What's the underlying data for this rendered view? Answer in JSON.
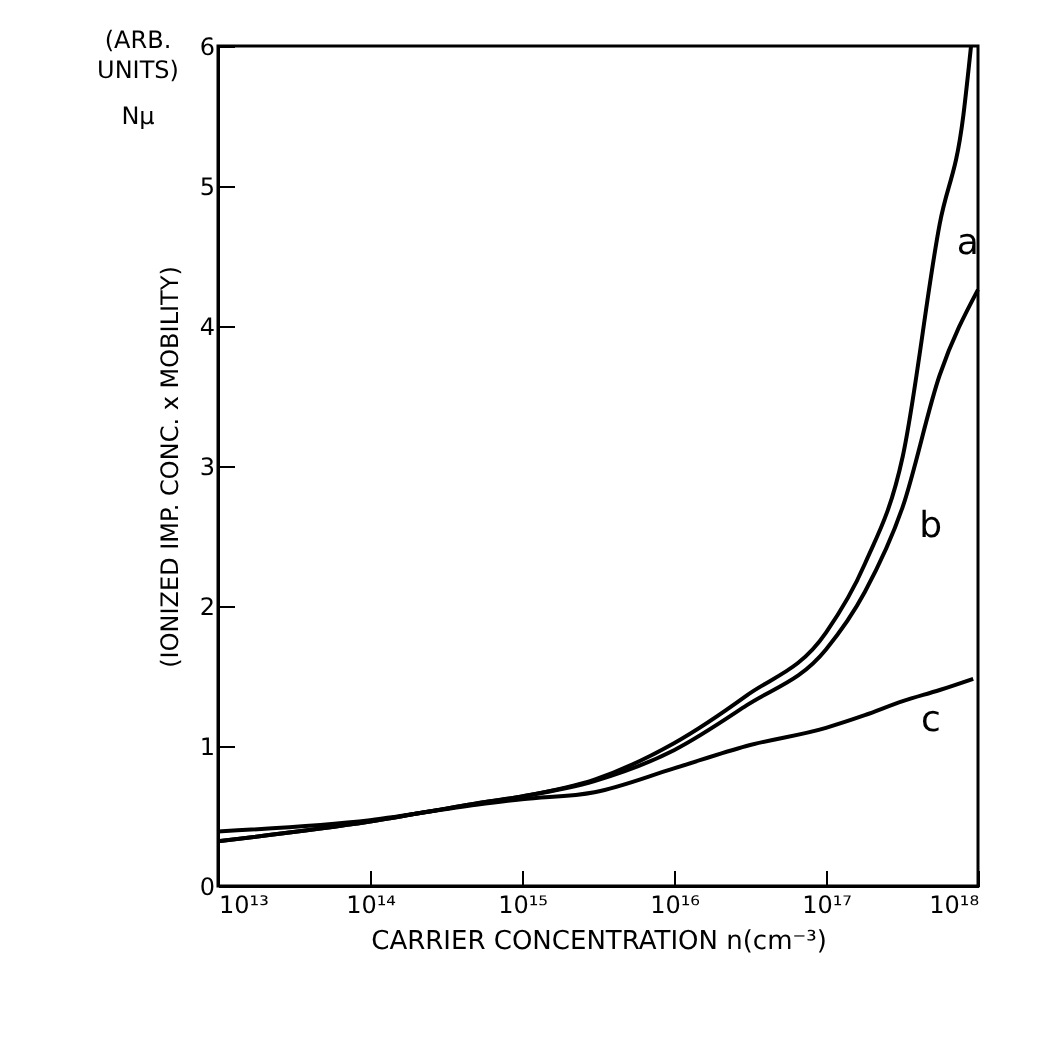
{
  "chart_data": {
    "type": "line",
    "xlabel": "CARRIER CONCENTRATION  n(cm⁻³)",
    "ylabel": "(IONIZED IMP. CONC. x MOBILITY)",
    "annotations": [
      "(ARB.",
      "UNITS)",
      "Nμ"
    ],
    "log": "x",
    "xlim": [
      10000000000000.0,
      1e+18
    ],
    "ylim": [
      0,
      6
    ],
    "xticks": [
      {
        "value": 10000000000000.0,
        "label": "10¹³"
      },
      {
        "value": 100000000000000.0,
        "label": "10¹⁴"
      },
      {
        "value": 1000000000000000.0,
        "label": "10¹⁵"
      },
      {
        "value": 1e+16,
        "label": "10¹⁶"
      },
      {
        "value": 1e+17,
        "label": "10¹⁷"
      },
      {
        "value": 1e+18,
        "label": "10¹⁸"
      }
    ],
    "yticks": [
      0,
      1,
      2,
      3,
      4,
      5,
      6
    ],
    "series": [
      {
        "name": "a",
        "color": "#000000",
        "x": [
          10000000000000.0,
          100000000000000.0,
          500000000000000.0,
          1000000000000000.0,
          3000000000000000.0,
          1e+16,
          3e+16,
          1e+17,
          1.8e+17,
          3.2e+17,
          5.6e+17,
          8e+17,
          9e+17
        ],
        "values": [
          0.32,
          0.46,
          0.59,
          0.64,
          0.76,
          1.02,
          1.36,
          1.81,
          2.3,
          3.07,
          4.73,
          5.5,
          6.0
        ]
      },
      {
        "name": "b",
        "color": "#000000",
        "x": [
          10000000000000.0,
          100000000000000.0,
          500000000000000.0,
          1000000000000000.0,
          3000000000000000.0,
          1e+16,
          3e+16,
          1e+17,
          1.8e+17,
          3.2e+17,
          5.6e+17,
          1e+18
        ],
        "values": [
          0.32,
          0.46,
          0.59,
          0.64,
          0.75,
          0.97,
          1.29,
          1.69,
          2.1,
          2.71,
          3.65,
          4.26
        ]
      },
      {
        "name": "c",
        "color": "#000000",
        "x": [
          10000000000000.0,
          100000000000000.0,
          500000000000000.0,
          1000000000000000.0,
          3000000000000000.0,
          1e+16,
          3e+16,
          1e+17,
          1.8e+17,
          3.2e+17,
          5.6e+17,
          9.3e+17
        ],
        "values": [
          0.39,
          0.47,
          0.58,
          0.62,
          0.67,
          0.84,
          1.0,
          1.13,
          1.22,
          1.32,
          1.4,
          1.48
        ]
      }
    ]
  }
}
